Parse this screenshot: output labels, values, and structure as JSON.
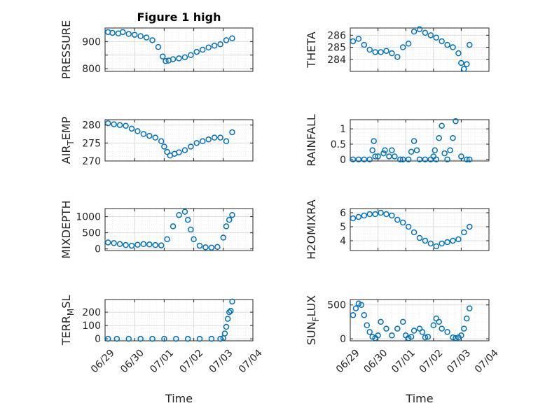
{
  "figure": {
    "title": "Figure 1 high"
  },
  "colors": {
    "marker": "#0072bd",
    "axis": "#262626",
    "grid": "#dcdcdc",
    "minorgrid": "#ececec"
  },
  "chart_data": [
    {
      "type": "scatter",
      "ylabel": "PRESSURE",
      "ylabel_sub": "",
      "ylabel_rest": "",
      "title": "Figure 1 high",
      "xlim": [
        0,
        5
      ],
      "ylim": [
        790,
        950
      ],
      "yticks": [
        800,
        850,
        900
      ],
      "yticklabels": [
        "800",
        "",
        "900"
      ],
      "xticklabels": [],
      "xlabel": "",
      "x": [
        0.1,
        0.25,
        0.45,
        0.6,
        0.8,
        1.0,
        1.2,
        1.4,
        1.6,
        1.8,
        1.95,
        2.05,
        2.15,
        2.3,
        2.5,
        2.7,
        2.9,
        3.1,
        3.3,
        3.5,
        3.7,
        3.9,
        4.1,
        4.3
      ],
      "y": [
        935,
        932,
        930,
        935,
        928,
        925,
        920,
        915,
        905,
        880,
        845,
        828,
        830,
        835,
        838,
        842,
        850,
        862,
        870,
        878,
        885,
        890,
        905,
        912
      ]
    },
    {
      "type": "scatter",
      "ylabel": "THETA",
      "ylabel_sub": "",
      "ylabel_rest": "",
      "xlim": [
        0,
        5
      ],
      "ylim": [
        283,
        286.6
      ],
      "yticks": [
        284,
        285,
        286
      ],
      "yticklabels": [
        "284",
        "285",
        "286"
      ],
      "xticklabels": [],
      "xlabel": "",
      "x": [
        0.1,
        0.3,
        0.5,
        0.7,
        0.9,
        1.1,
        1.3,
        1.5,
        1.7,
        1.9,
        2.1,
        2.3,
        2.5,
        2.7,
        2.9,
        3.1,
        3.3,
        3.5,
        3.7,
        3.9,
        4.0,
        4.1,
        4.2,
        4.3
      ],
      "y": [
        285.5,
        285.7,
        285.2,
        284.8,
        284.6,
        284.6,
        284.7,
        284.5,
        284.2,
        285.0,
        285.3,
        286.3,
        286.5,
        286.2,
        286.0,
        285.8,
        285.5,
        285.2,
        285.0,
        284.5,
        283.7,
        283.2,
        283.6,
        285.2
      ]
    },
    {
      "type": "scatter",
      "ylabel": "AIR",
      "ylabel_sub": "T",
      "ylabel_rest": "EMP",
      "xlim": [
        0,
        5
      ],
      "ylim": [
        270,
        281.5
      ],
      "yticks": [
        270,
        275,
        280
      ],
      "yticklabels": [
        "270",
        "275",
        "280"
      ],
      "xticklabels": [],
      "xlabel": "",
      "x": [
        0.1,
        0.3,
        0.5,
        0.7,
        0.9,
        1.1,
        1.3,
        1.5,
        1.7,
        1.9,
        2.0,
        2.1,
        2.2,
        2.35,
        2.5,
        2.7,
        2.9,
        3.1,
        3.3,
        3.5,
        3.7,
        3.9,
        4.1,
        4.3
      ],
      "y": [
        280.5,
        280.2,
        280.0,
        279.8,
        279.0,
        278.3,
        277.5,
        277.0,
        276.5,
        275.5,
        274.0,
        272.5,
        271.5,
        272.0,
        272.4,
        273.0,
        274.0,
        275.0,
        275.5,
        276.0,
        276.5,
        276.5,
        275.5,
        278.0
      ]
    },
    {
      "type": "scatter",
      "ylabel": "RAINFALL",
      "ylabel_sub": "",
      "ylabel_rest": "",
      "xlim": [
        0,
        5
      ],
      "ylim": [
        -0.05,
        1.3
      ],
      "yticks": [
        0,
        0.5,
        1
      ],
      "yticklabels": [
        "0",
        "0.5",
        "1"
      ],
      "xticklabels": [],
      "xlabel": "",
      "x": [
        0.1,
        0.3,
        0.5,
        0.7,
        0.8,
        0.85,
        0.9,
        1.0,
        1.2,
        1.25,
        1.4,
        1.5,
        1.6,
        1.8,
        1.9,
        2.1,
        2.2,
        2.3,
        2.4,
        2.5,
        2.7,
        2.9,
        3.0,
        3.05,
        3.1,
        3.2,
        3.3,
        3.4,
        3.5,
        3.6,
        3.7,
        3.8,
        4.0,
        4.2,
        4.3
      ],
      "y": [
        0,
        0,
        0,
        0,
        0.3,
        0.6,
        0.1,
        0.1,
        0.2,
        0.3,
        0.1,
        0.3,
        0.1,
        0,
        0,
        0,
        0.25,
        0.6,
        0.3,
        0,
        0,
        0,
        0.1,
        0.3,
        0,
        0.7,
        1.1,
        0.2,
        0,
        0.3,
        0.7,
        1.25,
        0.1,
        0,
        0
      ]
    },
    {
      "type": "scatter",
      "ylabel": "MIXDEPTH",
      "ylabel_sub": "",
      "ylabel_rest": "",
      "xlim": [
        0,
        5
      ],
      "ylim": [
        -50,
        1250
      ],
      "yticks": [
        0,
        500,
        1000
      ],
      "yticklabels": [
        "0",
        "500",
        "1000"
      ],
      "xticklabels": [],
      "xlabel": "",
      "x": [
        0.1,
        0.3,
        0.5,
        0.7,
        0.9,
        1.1,
        1.3,
        1.5,
        1.7,
        1.9,
        2.1,
        2.3,
        2.5,
        2.7,
        2.8,
        2.9,
        3.0,
        3.2,
        3.4,
        3.6,
        3.8,
        4.0,
        4.1,
        4.2,
        4.3
      ],
      "y": [
        200,
        180,
        150,
        120,
        100,
        130,
        150,
        140,
        120,
        110,
        300,
        700,
        1050,
        1150,
        900,
        600,
        300,
        100,
        50,
        40,
        60,
        350,
        700,
        900,
        1050
      ]
    },
    {
      "type": "scatter",
      "ylabel": "H2OMIXRA",
      "ylabel_sub": "",
      "ylabel_rest": "",
      "xlim": [
        0,
        5
      ],
      "ylim": [
        3.3,
        6.3
      ],
      "yticks": [
        4,
        5,
        6
      ],
      "yticklabels": [
        "4",
        "5",
        "6"
      ],
      "xticklabels": [],
      "xlabel": "",
      "x": [
        0.1,
        0.3,
        0.5,
        0.7,
        0.9,
        1.1,
        1.3,
        1.5,
        1.7,
        1.9,
        2.1,
        2.3,
        2.5,
        2.7,
        2.9,
        3.1,
        3.3,
        3.5,
        3.7,
        3.9,
        4.1,
        4.3
      ],
      "y": [
        5.6,
        5.7,
        5.8,
        5.9,
        5.9,
        6.0,
        5.9,
        5.8,
        5.5,
        5.3,
        5.0,
        4.6,
        4.2,
        4.0,
        3.8,
        3.6,
        3.8,
        3.9,
        4.0,
        4.1,
        4.6,
        5.0
      ]
    },
    {
      "type": "scatter",
      "ylabel": "TERR",
      "ylabel_sub": "M",
      "ylabel_rest": "SL",
      "xlim": [
        0,
        5
      ],
      "ylim": [
        -15,
        295
      ],
      "yticks": [
        0,
        100,
        200
      ],
      "yticklabels": [
        "0",
        "100",
        "200"
      ],
      "xticklabels": [
        "06/29",
        "06/30",
        "07/01",
        "07/02",
        "07/03",
        "07/04"
      ],
      "xlabel": "Time",
      "x": [
        0.1,
        0.4,
        0.8,
        1.2,
        1.6,
        2.0,
        2.4,
        2.8,
        3.2,
        3.6,
        3.9,
        4.0,
        4.05,
        4.1,
        4.15,
        4.2,
        4.25,
        4.3
      ],
      "y": [
        0,
        0,
        0,
        0,
        0,
        0,
        0,
        0,
        0,
        0,
        0,
        5,
        40,
        90,
        150,
        200,
        210,
        280
      ]
    },
    {
      "type": "scatter",
      "ylabel": "SUN",
      "ylabel_sub": "F",
      "ylabel_rest": "LUX",
      "xlim": [
        0,
        5
      ],
      "ylim": [
        -30,
        580
      ],
      "yticks": [
        0,
        500
      ],
      "yticklabels": [
        "0",
        "500"
      ],
      "xticklabels": [
        "06/29",
        "06/30",
        "07/01",
        "07/02",
        "07/03",
        "07/04"
      ],
      "xlabel": "Time",
      "x": [
        0.1,
        0.2,
        0.3,
        0.4,
        0.5,
        0.6,
        0.7,
        0.8,
        0.9,
        1.0,
        1.1,
        1.3,
        1.5,
        1.7,
        1.9,
        2.0,
        2.1,
        2.2,
        2.3,
        2.5,
        2.6,
        2.7,
        2.8,
        3.0,
        3.1,
        3.2,
        3.3,
        3.5,
        3.7,
        3.8,
        3.9,
        4.0,
        4.1,
        4.2,
        4.3
      ],
      "y": [
        350,
        450,
        520,
        500,
        350,
        200,
        100,
        30,
        10,
        50,
        250,
        150,
        50,
        150,
        250,
        50,
        10,
        30,
        120,
        150,
        100,
        20,
        30,
        200,
        300,
        250,
        150,
        100,
        20,
        10,
        20,
        50,
        150,
        300,
        450
      ]
    }
  ]
}
